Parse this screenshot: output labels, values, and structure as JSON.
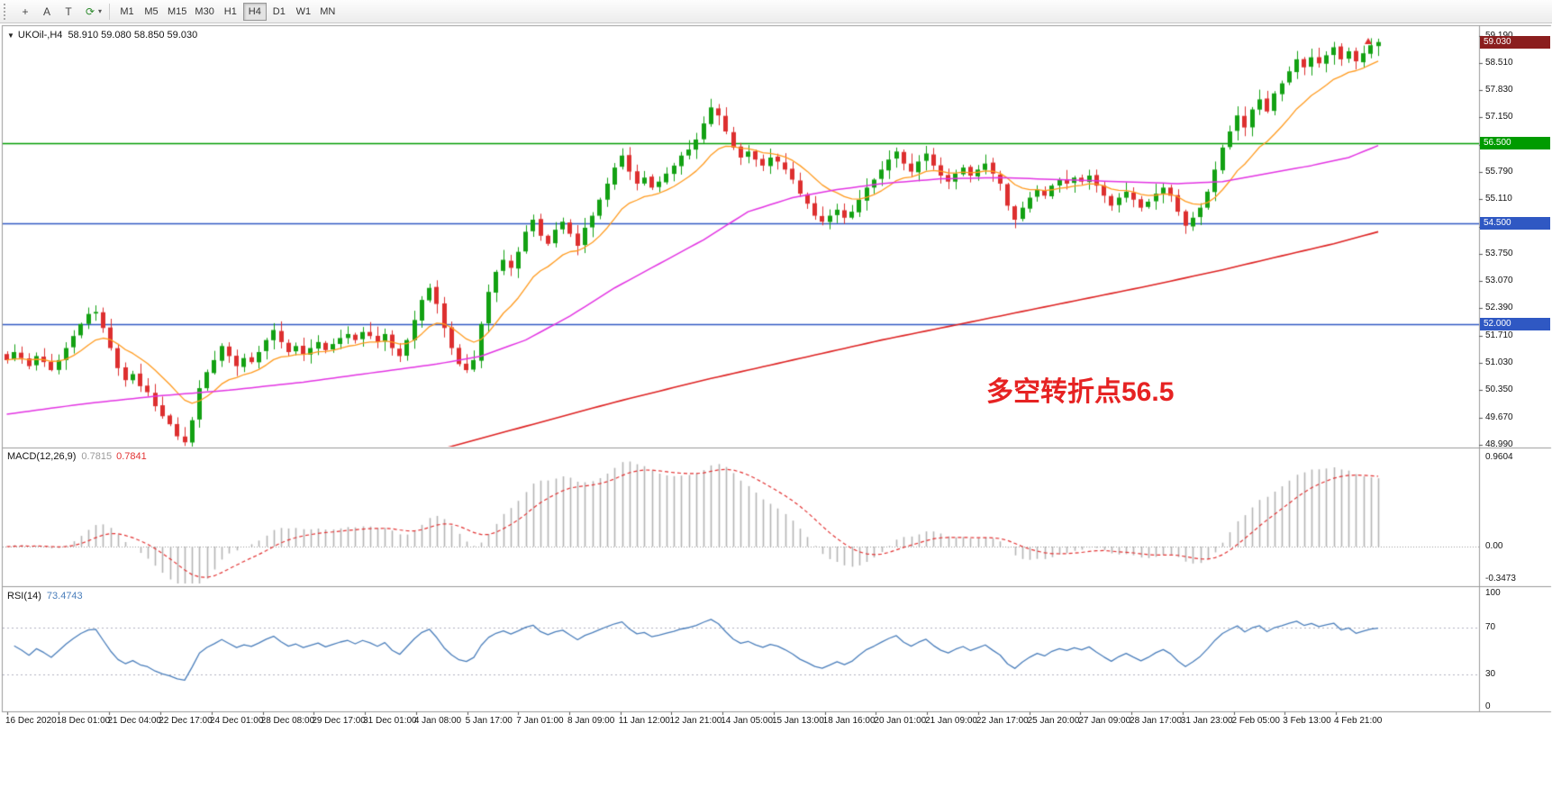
{
  "toolbar": {
    "tools": [
      {
        "name": "crosshair-tool-icon",
        "glyph": "+",
        "color": "#444444"
      },
      {
        "name": "text-label-tool-icon",
        "glyph": "A",
        "color": "#444444"
      },
      {
        "name": "text-cursor-tool-icon",
        "glyph": "T",
        "color": "#444444"
      },
      {
        "name": "auto-refresh-icon",
        "glyph": "⟳",
        "color": "#2e8b2e"
      }
    ],
    "dropdown_caret": "▾",
    "timeframes": [
      {
        "label": "M1",
        "active": false
      },
      {
        "label": "M5",
        "active": false
      },
      {
        "label": "M15",
        "active": false
      },
      {
        "label": "M30",
        "active": false
      },
      {
        "label": "H1",
        "active": false
      },
      {
        "label": "H4",
        "active": true
      },
      {
        "label": "D1",
        "active": false
      },
      {
        "label": "W1",
        "active": false
      },
      {
        "label": "MN",
        "active": false
      }
    ]
  },
  "chart": {
    "symbol_period": "UKOil-,H4",
    "ohlc": "58.910 59.080 58.850 59.030",
    "collapse_arrow": "▼",
    "annotation": {
      "text": "多空转折点56.5",
      "color": "#e62222"
    },
    "price_axis_labels": [
      "59.190",
      "58.510",
      "57.830",
      "57.150",
      "56.470",
      "55.790",
      "55.110",
      "54.430",
      "53.750",
      "53.070",
      "52.390",
      "51.710",
      "51.030",
      "50.350",
      "49.670",
      "48.990"
    ],
    "levels": [
      {
        "label": "56.500",
        "price": 56.5,
        "color": "#009b00"
      },
      {
        "label": "54.500",
        "price": 54.5,
        "color": "#2f58c3"
      },
      {
        "label": "52.000",
        "price": 52.0,
        "color": "#2f58c3"
      }
    ],
    "current_price": {
      "label": "59.030",
      "price": 59.03,
      "color": "#8b1e1e"
    },
    "marker": {
      "shape": "up-arrow",
      "color": "#dd2f2f"
    },
    "scale": {
      "max": 59.45,
      "min": 48.92
    },
    "up_color": "#13a113",
    "down_color": "#dd2f2f",
    "ma_fast": {
      "period": 12,
      "color": "#ff9a1e"
    },
    "ma_mid": {
      "color": "#e233e2",
      "points": [
        [
          0,
          49.75
        ],
        [
          10,
          50.0
        ],
        [
          20,
          50.2
        ],
        [
          30,
          50.35
        ],
        [
          40,
          50.55
        ],
        [
          50,
          50.8
        ],
        [
          58,
          51.0
        ],
        [
          64,
          51.2
        ],
        [
          70,
          51.6
        ],
        [
          76,
          52.2
        ],
        [
          82,
          52.9
        ],
        [
          88,
          53.5
        ],
        [
          94,
          54.1
        ],
        [
          100,
          54.8
        ],
        [
          106,
          55.15
        ],
        [
          112,
          55.35
        ],
        [
          118,
          55.5
        ],
        [
          126,
          55.62
        ],
        [
          134,
          55.65
        ],
        [
          142,
          55.6
        ],
        [
          150,
          55.55
        ],
        [
          158,
          55.5
        ],
        [
          164,
          55.55
        ],
        [
          170,
          55.75
        ],
        [
          176,
          55.95
        ],
        [
          181,
          56.15
        ],
        [
          185,
          56.45
        ]
      ]
    },
    "ma_slow": {
      "color": "#dd2222",
      "points": [
        [
          59,
          48.9
        ],
        [
          70,
          49.45
        ],
        [
          82,
          50.05
        ],
        [
          94,
          50.6
        ],
        [
          106,
          51.1
        ],
        [
          118,
          51.6
        ],
        [
          130,
          52.05
        ],
        [
          142,
          52.5
        ],
        [
          154,
          52.95
        ],
        [
          164,
          53.35
        ],
        [
          172,
          53.7
        ],
        [
          179,
          54.0
        ],
        [
          185,
          54.3
        ]
      ]
    },
    "closes": [
      51.1,
      51.3,
      51.15,
      50.95,
      51.2,
      51.05,
      50.85,
      51.1,
      51.4,
      51.7,
      52.0,
      52.25,
      52.3,
      51.9,
      51.4,
      50.9,
      50.6,
      50.75,
      50.45,
      50.3,
      49.95,
      49.7,
      49.5,
      49.2,
      49.05,
      49.6,
      50.4,
      50.8,
      51.1,
      51.45,
      51.2,
      50.95,
      51.15,
      51.05,
      51.3,
      51.6,
      51.85,
      51.55,
      51.3,
      51.45,
      51.25,
      51.4,
      51.55,
      51.35,
      51.5,
      51.65,
      51.75,
      51.6,
      51.8,
      51.7,
      51.55,
      51.75,
      51.4,
      51.2,
      51.6,
      52.1,
      52.6,
      52.9,
      52.5,
      51.9,
      51.4,
      51.0,
      50.85,
      51.1,
      52.0,
      52.8,
      53.3,
      53.6,
      53.4,
      53.8,
      54.3,
      54.6,
      54.2,
      54.0,
      54.35,
      54.55,
      54.25,
      53.95,
      54.4,
      54.7,
      55.1,
      55.5,
      55.9,
      56.2,
      55.8,
      55.5,
      55.65,
      55.4,
      55.55,
      55.75,
      55.95,
      56.2,
      56.35,
      56.6,
      57.0,
      57.4,
      57.2,
      56.8,
      56.4,
      56.15,
      56.3,
      56.1,
      55.95,
      56.15,
      56.05,
      55.85,
      55.6,
      55.25,
      55.0,
      54.7,
      54.55,
      54.7,
      54.85,
      54.65,
      54.8,
      55.1,
      55.4,
      55.6,
      55.85,
      56.1,
      56.3,
      56.0,
      55.8,
      56.05,
      56.25,
      55.95,
      55.7,
      55.55,
      55.75,
      55.9,
      55.7,
      55.85,
      56.0,
      55.75,
      55.5,
      54.95,
      54.6,
      54.9,
      55.15,
      55.35,
      55.2,
      55.45,
      55.6,
      55.5,
      55.65,
      55.55,
      55.7,
      55.45,
      55.2,
      54.95,
      55.15,
      55.3,
      55.1,
      54.9,
      55.05,
      55.25,
      55.4,
      55.2,
      54.8,
      54.45,
      54.65,
      54.9,
      55.3,
      55.85,
      56.4,
      56.8,
      57.2,
      56.9,
      57.35,
      57.6,
      57.3,
      57.75,
      58.0,
      58.3,
      58.6,
      58.4,
      58.65,
      58.5,
      58.7,
      58.9,
      58.6,
      58.8,
      58.55,
      58.75,
      58.95,
      59.03
    ]
  },
  "macd": {
    "name": "MACD(12,26,9)",
    "value_main": "0.7815",
    "value_signal": "0.7841",
    "axis": [
      "0.9604",
      "0.00",
      "-0.3473"
    ],
    "fast": 12,
    "slow": 26,
    "signal": 9,
    "hist_color": "#b4b4b4",
    "signal_color": "#e23333"
  },
  "rsi": {
    "name": "RSI(14)",
    "value": "73.4743",
    "axis": [
      "100",
      "70",
      "30",
      "0"
    ],
    "period": 14,
    "levels": [
      70,
      30
    ],
    "color": "#4a7ebb"
  },
  "time_axis": {
    "labels": [
      "16 Dec 2020",
      "18 Dec 01:00",
      "21 Dec 04:00",
      "22 Dec 17:00",
      "24 Dec 01:00",
      "28 Dec 08:00",
      "29 Dec 17:00",
      "31 Dec 01:00",
      "4 Jan 08:00",
      "5 Jan 17:00",
      "7 Jan 01:00",
      "8 Jan 09:00",
      "11 Jan 12:00",
      "12 Jan 21:00",
      "14 Jan 05:00",
      "15 Jan 13:00",
      "18 Jan 16:00",
      "20 Jan 01:00",
      "21 Jan 09:00",
      "22 Jan 17:00",
      "25 Jan 20:00",
      "27 Jan 09:00",
      "28 Jan 17:00",
      "31 Jan 23:00",
      "2 Feb 05:00",
      "3 Feb 13:00",
      "4 Feb 21:00"
    ]
  }
}
